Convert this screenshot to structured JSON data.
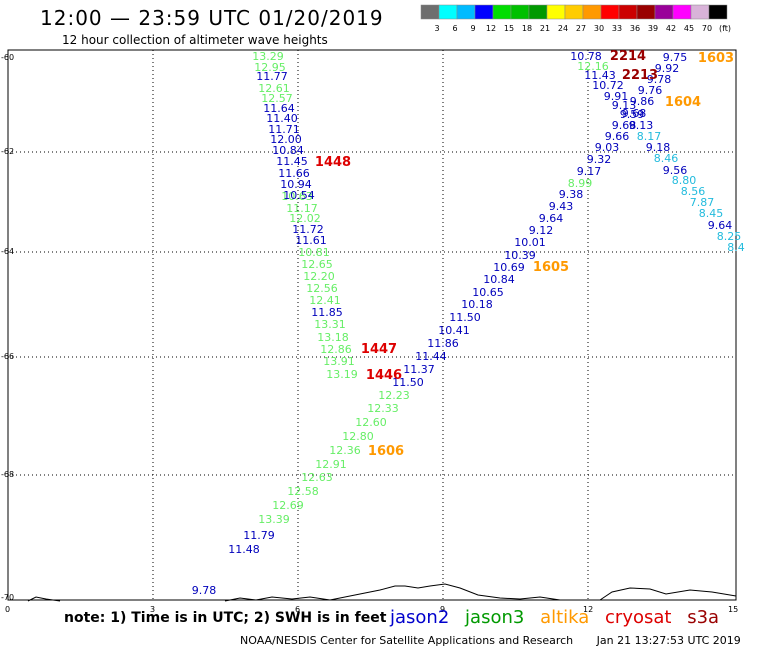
{
  "header": {
    "title": "12:00 — 23:59 UTC 01/20/2019",
    "subtitle": "12 hour collection of altimeter wave heights"
  },
  "legend": {
    "colors": [
      "#6e6e6e",
      "#00ffff",
      "#00bbff",
      "#0000ff",
      "#00dd00",
      "#00c000",
      "#009900",
      "#ffff00",
      "#ffcc00",
      "#ff9900",
      "#ff0000",
      "#cc0000",
      "#990000",
      "#990099",
      "#ff00ff",
      "#d9b3d9",
      "#000000"
    ],
    "labels": [
      "3",
      "6",
      "9",
      "12",
      "15",
      "18",
      "21",
      "24",
      "27",
      "30",
      "33",
      "36",
      "39",
      "42",
      "45",
      "70",
      "(ft)"
    ]
  },
  "axes": {
    "x_ticks": [
      "0",
      "3",
      "6",
      "9",
      "12",
      "15"
    ],
    "y_ticks": [
      "-60",
      "-62",
      "-64",
      "-66",
      "-68",
      "-70"
    ]
  },
  "colors": {
    "jason2": "#0000bb",
    "jason3": "#66ee66",
    "altika": "#ff9900",
    "cryosat": "#dd0000",
    "s3a": "#990000",
    "cyan_track": "#22bbdd"
  },
  "observations": {
    "pass_a": {
      "green": [
        "13.29",
        "12.95",
        "12.61",
        "12.57",
        "10.81",
        "11.17",
        "12.02",
        "10.63",
        "12.65",
        "12.20",
        "12.56",
        "12.41",
        "13.31",
        "13.18",
        "12.86",
        "13.91",
        "13.19",
        "12.23",
        "12.33",
        "12.60",
        "12.80",
        "12.36",
        "12.91",
        "12.63",
        "12.58",
        "12.69",
        "13.39"
      ],
      "blue": [
        "11.77",
        "11.64",
        "11.40",
        "11.71",
        "12.00",
        "10.84",
        "11.45",
        "11.66",
        "10.94",
        "10.54",
        "11.72",
        "11.61",
        "11.85",
        "11.50",
        "11.79",
        "11.48",
        "9.78"
      ]
    },
    "pass_b": {
      "blue": [
        "10.78",
        "11.43",
        "10.72",
        "9.91",
        "9.13",
        "9.59",
        "9.68",
        "9.66",
        "9.03",
        "9.32",
        "9.17",
        "9.38",
        "9.43",
        "9.64",
        "9.12",
        "10.01",
        "10.39",
        "10.69",
        "10.84",
        "10.65",
        "10.18",
        "11.50",
        "10.41",
        "11.86",
        "11.44",
        "11.37"
      ],
      "green": [
        "12.16",
        "8.99"
      ]
    },
    "pass_c": {
      "blue": [
        "9.75",
        "9.92",
        "9.78",
        "9.76",
        "9.86",
        "9.68",
        "9.13",
        "9.18",
        "9.56",
        "9.64"
      ],
      "cyan": [
        "8.17",
        "8.46",
        "8.80",
        "8.56",
        "7.87",
        "8.45",
        "8.25",
        "8.4"
      ]
    },
    "pass_times": {
      "t2214": "2214",
      "t2213": "2213",
      "t1603": "1603",
      "t1604": "1604",
      "t1605": "1605",
      "t1448": "1448",
      "t1447": "1447",
      "t1446": "1446",
      "t1606": "1606"
    }
  },
  "footer": {
    "note": "note: 1) Time is in UTC; 2) SWH is in feet",
    "satellites": [
      {
        "name": "jason2",
        "color": "#0000cc"
      },
      {
        "name": "jason3",
        "color": "#009900"
      },
      {
        "name": "altika",
        "color": "#ff9900"
      },
      {
        "name": "cryosat",
        "color": "#dd0000"
      },
      {
        "name": "s3a",
        "color": "#990000"
      }
    ],
    "credit": "NOAA/NESDIS Center for Satellite Applications and Research",
    "timestamp": "Jan 21 13:27:53 UTC 2019"
  }
}
